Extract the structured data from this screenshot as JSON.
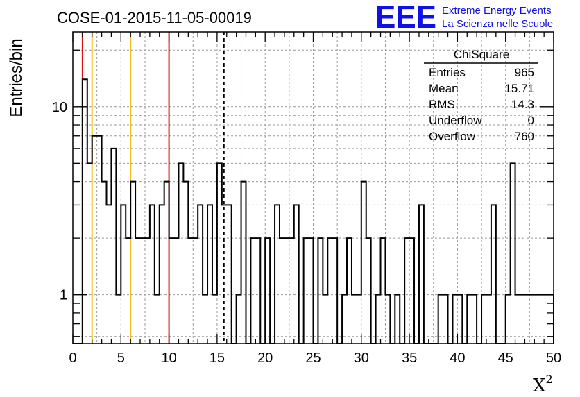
{
  "chart_data": {
    "type": "bar",
    "title": "COSE-01-2015-11-05-00019",
    "xlabel": "X",
    "xlabel_superscript": "2",
    "ylabel": "Entries/bin",
    "xlim": [
      0,
      50
    ],
    "ylim": [
      0.55,
      25
    ],
    "y_scale": "log",
    "grid": true,
    "x_ticks": [
      0,
      5,
      10,
      15,
      20,
      25,
      30,
      35,
      40,
      45,
      50
    ],
    "y_ticks": [
      1,
      10
    ],
    "bin_width": 0.5,
    "bin_start": 0,
    "values": [
      0,
      0,
      14,
      5,
      7,
      7,
      4,
      3,
      6,
      1,
      3,
      2,
      4,
      2,
      2,
      2,
      3,
      1,
      3,
      4,
      2,
      2,
      5,
      4,
      2,
      2,
      3,
      1,
      3,
      1,
      5,
      3,
      3,
      0,
      1,
      4,
      0,
      2,
      2,
      0,
      2,
      0,
      3,
      2,
      2,
      2,
      3,
      0,
      2,
      2,
      0,
      2,
      1,
      2,
      2,
      0,
      1,
      2,
      1,
      1,
      4,
      2,
      0,
      1,
      2,
      1,
      0,
      1,
      0,
      2,
      2,
      0,
      3,
      0,
      0,
      0,
      1,
      1,
      0,
      1,
      1,
      0,
      1,
      1,
      0,
      1,
      1,
      3,
      0,
      0,
      1,
      5,
      1,
      1,
      1,
      1,
      1,
      1,
      1,
      1
    ],
    "vertical_lines": [
      {
        "x": 1,
        "color": "#dd1111",
        "style": "solid"
      },
      {
        "x": 2,
        "color": "#f0c020",
        "style": "solid"
      },
      {
        "x": 6,
        "color": "#f0c020",
        "style": "solid"
      },
      {
        "x": 10,
        "color": "#dd1111",
        "style": "solid"
      },
      {
        "x": 15.71,
        "color": "#000000",
        "style": "dashed"
      }
    ],
    "stats_box": {
      "title": "ChiSquare",
      "rows": [
        {
          "label": "Entries",
          "value": "965"
        },
        {
          "label": "Mean",
          "value": "15.71"
        },
        {
          "label": "RMS",
          "value": "14.3"
        },
        {
          "label": "Underflow",
          "value": "0"
        },
        {
          "label": "Overflow",
          "value": "760"
        }
      ]
    }
  },
  "logo": {
    "text": "EEE",
    "line1": "Extreme Energy Events",
    "line2": "La Scienza nelle Scuole",
    "color": "#1010e8"
  }
}
